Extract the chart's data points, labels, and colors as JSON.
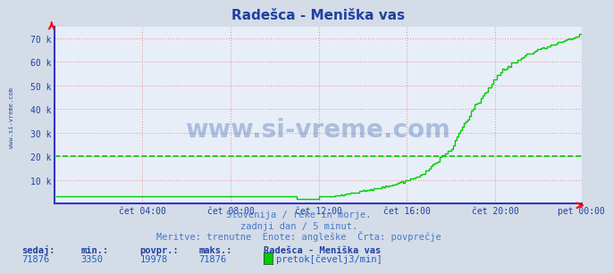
{
  "title": "Radešca - Meniška vas",
  "background_color": "#d4dce8",
  "plot_bg_color": "#e8eef8",
  "grid_color": "#e8a0a0",
  "line_color": "#00cc00",
  "avg_line_color": "#00cc00",
  "avg_value": 19978,
  "ymin": 0,
  "ymax": 75000,
  "yticks": [
    10000,
    20000,
    30000,
    40000,
    50000,
    60000,
    70000
  ],
  "ytick_labels": [
    "10 k",
    "20 k",
    "30 k",
    "40 k",
    "50 k",
    "60 k",
    "70 k"
  ],
  "xlabel_ticks": [
    "čet 04:00",
    "čet 08:00",
    "čet 12:00",
    "čet 16:00",
    "čet 20:00",
    "pet 00:00"
  ],
  "text_line1": "Slovenija / reke in morje.",
  "text_line2": "zadnji dan / 5 minut.",
  "text_line3": "Meritve: trenutne  Enote: angleške  Črta: povprečje",
  "footer_labels": [
    "sedaj:",
    "min.:",
    "povpr.:",
    "maks.:"
  ],
  "footer_values": [
    "71876",
    "3350",
    "19978",
    "71876"
  ],
  "footer_station": "Radešca - Meniška vas",
  "footer_legend": "pretok[čevelj3/min]",
  "legend_color": "#00cc00",
  "watermark": "www.si-vreme.com",
  "watermark_color": "#2050a0",
  "sidebar_text": "www.si-vreme.com",
  "sidebar_color": "#2050a0",
  "title_color": "#2040a0",
  "axis_label_color": "#2040a0",
  "footer_label_color": "#2040a0",
  "footer_value_color": "#2060c0",
  "num_points": 288,
  "flat_value": 3350,
  "peak_value": 71876
}
